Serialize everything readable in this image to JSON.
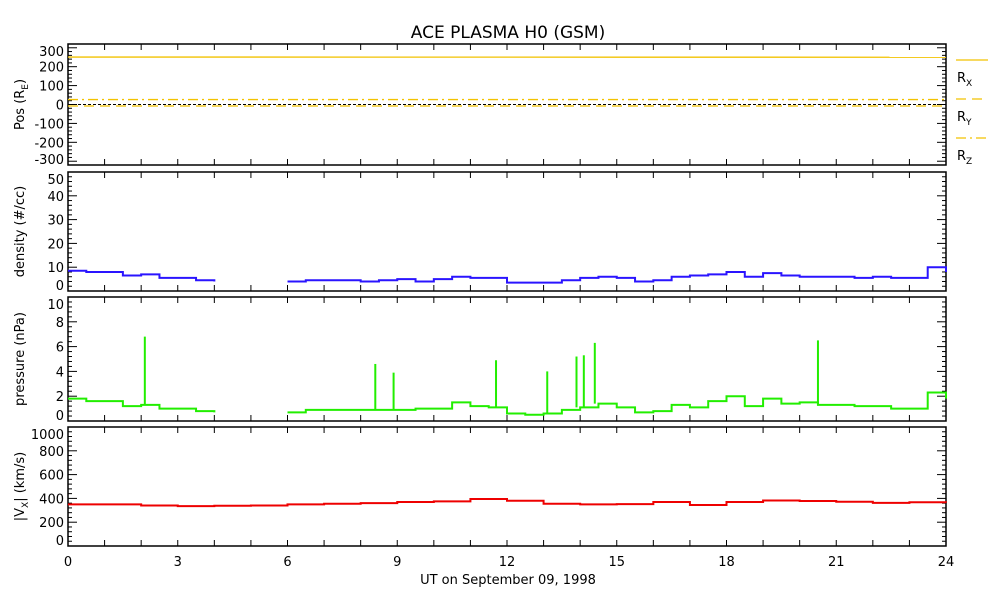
{
  "chart_data": {
    "type": "line",
    "title": "ACE PLASMA H0 (GSM)",
    "xlabel": "UT on September 09, 1998",
    "xlim": [
      0,
      24
    ],
    "xticks": [
      "0",
      "3",
      "6",
      "9",
      "12",
      "15",
      "18",
      "21",
      "24"
    ],
    "panels": [
      {
        "id": "pos",
        "ylabel": "Pos (R",
        "ylabel_sub": "E",
        "ylabel_end": ")",
        "ylim": [
          -320,
          320
        ],
        "yticks": [
          "-300",
          "-200",
          "-100",
          "0",
          "100",
          "200",
          "300"
        ],
        "ytick_values": [
          -300,
          -200,
          -100,
          0,
          100,
          200,
          300
        ],
        "legend": [
          {
            "label": "R",
            "sub": "X",
            "style": "solid"
          },
          {
            "label": "R",
            "sub": "Y",
            "style": "dashed"
          },
          {
            "label": "R",
            "sub": "Z",
            "style": "dashdot"
          }
        ],
        "color": "#f2c200",
        "series": [
          {
            "name": "RX",
            "x": [
              0,
              24
            ],
            "y": [
              251,
              250
            ],
            "style": "solid"
          },
          {
            "name": "RY",
            "x": [
              0,
              24
            ],
            "y": [
              -8,
              -8
            ],
            "style": "dashed"
          },
          {
            "name": "RZ",
            "x": [
              0,
              24
            ],
            "y": [
              26,
              26
            ],
            "style": "dashdot"
          }
        ]
      },
      {
        "id": "density",
        "ylabel": "density (#/cc)",
        "ylim": [
          0,
          50
        ],
        "yticks": [
          "0",
          "10",
          "20",
          "30",
          "40",
          "50"
        ],
        "ytick_values": [
          0,
          10,
          20,
          30,
          40,
          50
        ],
        "color": "#2a14ff",
        "x_step": 0.5,
        "y": [
          8.5,
          8,
          8,
          6.5,
          7,
          5.5,
          5.5,
          4.5,
          4,
          null,
          null,
          null,
          4,
          4.5,
          4.5,
          4.5,
          4,
          4.5,
          5,
          4,
          5,
          6,
          5.5,
          5.5,
          3.5,
          3.5,
          3.5,
          4.5,
          5.5,
          6,
          5.5,
          4,
          4.5,
          6,
          6.5,
          7,
          8,
          6,
          7.5,
          6.5,
          6,
          6,
          6,
          5.5,
          6,
          5.5,
          5.5,
          10,
          8
        ]
      },
      {
        "id": "pressure",
        "ylabel": "pressure (nPa)",
        "ylim": [
          0,
          10
        ],
        "yticks": [
          "0",
          "2",
          "4",
          "6",
          "8",
          "10"
        ],
        "ytick_values": [
          0,
          2,
          4,
          6,
          8,
          10
        ],
        "color": "#22ee00",
        "x_step": 0.5,
        "y": [
          1.8,
          1.6,
          1.6,
          1.2,
          1.3,
          1.0,
          1.0,
          0.8,
          0.7,
          null,
          null,
          null,
          0.7,
          0.9,
          0.9,
          0.9,
          0.9,
          0.9,
          0.9,
          1.0,
          1.0,
          1.5,
          1.2,
          1.1,
          0.6,
          0.5,
          0.6,
          0.9,
          1.1,
          1.4,
          1.1,
          0.7,
          0.8,
          1.3,
          1.1,
          1.6,
          2.0,
          1.2,
          1.8,
          1.4,
          1.5,
          1.3,
          1.3,
          1.2,
          1.2,
          1.0,
          1.0,
          2.3,
          1.8
        ],
        "spikes": [
          [
            2.1,
            6.8
          ],
          [
            8.4,
            4.6
          ],
          [
            8.9,
            3.9
          ],
          [
            11.7,
            4.9
          ],
          [
            13.1,
            4.0
          ],
          [
            13.9,
            5.2
          ],
          [
            14.1,
            5.3
          ],
          [
            14.4,
            6.3
          ],
          [
            20.5,
            6.5
          ]
        ]
      },
      {
        "id": "velocity",
        "ylabel": "|V",
        "ylabel_sub": "X",
        "ylabel_end": "| (km/s)",
        "ylim": [
          0,
          1000
        ],
        "yticks": [
          "0",
          "200",
          "400",
          "600",
          "800",
          "1000"
        ],
        "ytick_values": [
          0,
          200,
          400,
          600,
          800,
          1000
        ],
        "color": "#ee0000",
        "x_step": 1,
        "y": [
          350,
          350,
          340,
          335,
          338,
          340,
          350,
          355,
          360,
          370,
          375,
          395,
          380,
          355,
          350,
          352,
          370,
          345,
          370,
          382,
          378,
          372,
          362,
          368,
          365
        ]
      }
    ]
  }
}
